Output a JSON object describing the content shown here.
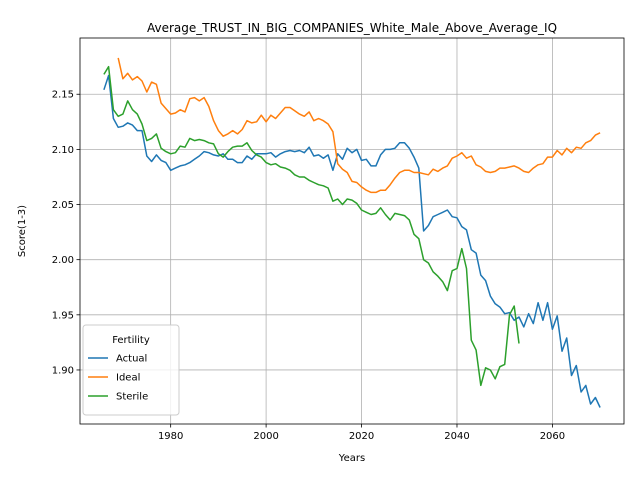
{
  "chart_data": {
    "type": "line",
    "title": "Average_TRUST_IN_BIG_COMPANIES_White_Male_Above_Average_IQ",
    "xlabel": "Years",
    "ylabel": "Score(1-3)",
    "xlim": [
      1961,
      2075
    ],
    "ylim": [
      1.851,
      2.201
    ],
    "xticks": [
      1980,
      2000,
      2020,
      2040,
      2060
    ],
    "yticks": [
      1.9,
      1.95,
      2.0,
      2.05,
      2.1,
      2.15
    ],
    "xtick_labels": [
      "1980",
      "2000",
      "2020",
      "2040",
      "2060"
    ],
    "ytick_labels": [
      "1.90",
      "1.95",
      "2.00",
      "2.05",
      "2.10",
      "2.15"
    ],
    "grid": true,
    "legend": {
      "title": "Fertility",
      "placement": "lower-left"
    },
    "series": [
      {
        "name": "Actual",
        "color": "#1f77b4",
        "points": [
          [
            1966,
            2.154
          ],
          [
            1967,
            2.167
          ],
          [
            1968,
            2.128
          ],
          [
            1969,
            2.12
          ],
          [
            1970,
            2.121
          ],
          [
            1971,
            2.124
          ],
          [
            1972,
            2.122
          ],
          [
            1973,
            2.117
          ],
          [
            1974,
            2.117
          ],
          [
            1975,
            2.094
          ],
          [
            1976,
            2.089
          ],
          [
            1977,
            2.095
          ],
          [
            1978,
            2.09
          ],
          [
            1979,
            2.088
          ],
          [
            1980,
            2.081
          ],
          [
            1981,
            2.083
          ],
          [
            1982,
            2.085
          ],
          [
            1983,
            2.086
          ],
          [
            1984,
            2.088
          ],
          [
            1985,
            2.091
          ],
          [
            1986,
            2.094
          ],
          [
            1987,
            2.098
          ],
          [
            1988,
            2.097
          ],
          [
            1989,
            2.095
          ],
          [
            1990,
            2.094
          ],
          [
            1991,
            2.096
          ],
          [
            1992,
            2.091
          ],
          [
            1993,
            2.091
          ],
          [
            1994,
            2.088
          ],
          [
            1995,
            2.088
          ],
          [
            1996,
            2.094
          ],
          [
            1997,
            2.091
          ],
          [
            1998,
            2.096
          ],
          [
            1999,
            2.096
          ],
          [
            2000,
            2.096
          ],
          [
            2001,
            2.097
          ],
          [
            2002,
            2.093
          ],
          [
            2003,
            2.096
          ],
          [
            2004,
            2.098
          ],
          [
            2005,
            2.099
          ],
          [
            2006,
            2.098
          ],
          [
            2007,
            2.099
          ],
          [
            2008,
            2.097
          ],
          [
            2009,
            2.102
          ],
          [
            2010,
            2.094
          ],
          [
            2011,
            2.095
          ],
          [
            2012,
            2.092
          ],
          [
            2013,
            2.095
          ],
          [
            2014,
            2.081
          ],
          [
            2015,
            2.096
          ],
          [
            2016,
            2.091
          ],
          [
            2017,
            2.101
          ],
          [
            2018,
            2.097
          ],
          [
            2019,
            2.1
          ],
          [
            2020,
            2.09
          ],
          [
            2021,
            2.091
          ],
          [
            2022,
            2.085
          ],
          [
            2023,
            2.085
          ],
          [
            2024,
            2.095
          ],
          [
            2025,
            2.1
          ],
          [
            2026,
            2.1
          ],
          [
            2027,
            2.101
          ],
          [
            2028,
            2.106
          ],
          [
            2029,
            2.106
          ],
          [
            2030,
            2.101
          ],
          [
            2031,
            2.093
          ],
          [
            2032,
            2.083
          ],
          [
            2033,
            2.026
          ],
          [
            2034,
            2.031
          ],
          [
            2035,
            2.039
          ],
          [
            2036,
            2.041
          ],
          [
            2037,
            2.043
          ],
          [
            2038,
            2.045
          ],
          [
            2039,
            2.039
          ],
          [
            2040,
            2.038
          ],
          [
            2041,
            2.03
          ],
          [
            2042,
            2.027
          ],
          [
            2043,
            2.009
          ],
          [
            2044,
            2.006
          ],
          [
            2045,
            1.986
          ],
          [
            2046,
            1.981
          ],
          [
            2047,
            1.967
          ],
          [
            2048,
            1.96
          ],
          [
            2049,
            1.957
          ],
          [
            2050,
            1.951
          ],
          [
            2051,
            1.952
          ],
          [
            2052,
            1.945
          ],
          [
            2053,
            1.948
          ],
          [
            2054,
            1.939
          ],
          [
            2055,
            1.951
          ],
          [
            2056,
            1.942
          ],
          [
            2057,
            1.961
          ],
          [
            2058,
            1.945
          ],
          [
            2059,
            1.961
          ],
          [
            2060,
            1.937
          ],
          [
            2061,
            1.949
          ],
          [
            2062,
            1.917
          ],
          [
            2063,
            1.929
          ],
          [
            2064,
            1.895
          ],
          [
            2065,
            1.904
          ],
          [
            2066,
            1.88
          ],
          [
            2067,
            1.886
          ],
          [
            2068,
            1.869
          ],
          [
            2069,
            1.875
          ],
          [
            2070,
            1.866
          ]
        ]
      },
      {
        "name": "Ideal",
        "color": "#ff7f0e",
        "points": [
          [
            1969,
            2.183
          ],
          [
            1970,
            2.164
          ],
          [
            1971,
            2.169
          ],
          [
            1972,
            2.163
          ],
          [
            1973,
            2.166
          ],
          [
            1974,
            2.162
          ],
          [
            1975,
            2.152
          ],
          [
            1976,
            2.161
          ],
          [
            1977,
            2.159
          ],
          [
            1978,
            2.142
          ],
          [
            1979,
            2.137
          ],
          [
            1980,
            2.132
          ],
          [
            1981,
            2.133
          ],
          [
            1982,
            2.136
          ],
          [
            1983,
            2.134
          ],
          [
            1984,
            2.146
          ],
          [
            1985,
            2.147
          ],
          [
            1986,
            2.144
          ],
          [
            1987,
            2.147
          ],
          [
            1988,
            2.139
          ],
          [
            1989,
            2.126
          ],
          [
            1990,
            2.117
          ],
          [
            1991,
            2.112
          ],
          [
            1992,
            2.114
          ],
          [
            1993,
            2.117
          ],
          [
            1994,
            2.114
          ],
          [
            1995,
            2.118
          ],
          [
            1996,
            2.126
          ],
          [
            1997,
            2.124
          ],
          [
            1998,
            2.125
          ],
          [
            1999,
            2.131
          ],
          [
            2000,
            2.125
          ],
          [
            2001,
            2.131
          ],
          [
            2002,
            2.128
          ],
          [
            2003,
            2.133
          ],
          [
            2004,
            2.138
          ],
          [
            2005,
            2.138
          ],
          [
            2006,
            2.135
          ],
          [
            2007,
            2.132
          ],
          [
            2008,
            2.13
          ],
          [
            2009,
            2.134
          ],
          [
            2010,
            2.126
          ],
          [
            2011,
            2.128
          ],
          [
            2012,
            2.126
          ],
          [
            2013,
            2.123
          ],
          [
            2014,
            2.116
          ],
          [
            2015,
            2.087
          ],
          [
            2016,
            2.082
          ],
          [
            2017,
            2.079
          ],
          [
            2018,
            2.071
          ],
          [
            2019,
            2.07
          ],
          [
            2020,
            2.066
          ],
          [
            2021,
            2.063
          ],
          [
            2022,
            2.061
          ],
          [
            2023,
            2.061
          ],
          [
            2024,
            2.063
          ],
          [
            2025,
            2.063
          ],
          [
            2026,
            2.068
          ],
          [
            2027,
            2.074
          ],
          [
            2028,
            2.079
          ],
          [
            2029,
            2.081
          ],
          [
            2030,
            2.081
          ],
          [
            2031,
            2.079
          ],
          [
            2032,
            2.079
          ],
          [
            2033,
            2.078
          ],
          [
            2034,
            2.077
          ],
          [
            2035,
            2.082
          ],
          [
            2036,
            2.08
          ],
          [
            2037,
            2.083
          ],
          [
            2038,
            2.085
          ],
          [
            2039,
            2.092
          ],
          [
            2040,
            2.094
          ],
          [
            2041,
            2.097
          ],
          [
            2042,
            2.092
          ],
          [
            2043,
            2.094
          ],
          [
            2044,
            2.086
          ],
          [
            2045,
            2.084
          ],
          [
            2046,
            2.08
          ],
          [
            2047,
            2.079
          ],
          [
            2048,
            2.08
          ],
          [
            2049,
            2.083
          ],
          [
            2050,
            2.083
          ],
          [
            2051,
            2.084
          ],
          [
            2052,
            2.085
          ],
          [
            2053,
            2.083
          ],
          [
            2054,
            2.08
          ],
          [
            2055,
            2.079
          ],
          [
            2056,
            2.083
          ],
          [
            2057,
            2.086
          ],
          [
            2058,
            2.087
          ],
          [
            2059,
            2.093
          ],
          [
            2060,
            2.093
          ],
          [
            2061,
            2.099
          ],
          [
            2062,
            2.095
          ],
          [
            2063,
            2.101
          ],
          [
            2064,
            2.097
          ],
          [
            2065,
            2.102
          ],
          [
            2066,
            2.101
          ],
          [
            2067,
            2.106
          ],
          [
            2068,
            2.108
          ],
          [
            2069,
            2.113
          ],
          [
            2070,
            2.115
          ]
        ]
      },
      {
        "name": "Sterile",
        "color": "#2ca02c",
        "points": [
          [
            1966,
            2.168
          ],
          [
            1967,
            2.175
          ],
          [
            1968,
            2.136
          ],
          [
            1969,
            2.13
          ],
          [
            1970,
            2.132
          ],
          [
            1971,
            2.144
          ],
          [
            1972,
            2.136
          ],
          [
            1973,
            2.132
          ],
          [
            1974,
            2.123
          ],
          [
            1975,
            2.108
          ],
          [
            1976,
            2.11
          ],
          [
            1977,
            2.114
          ],
          [
            1978,
            2.101
          ],
          [
            1979,
            2.098
          ],
          [
            1980,
            2.096
          ],
          [
            1981,
            2.097
          ],
          [
            1982,
            2.103
          ],
          [
            1983,
            2.102
          ],
          [
            1984,
            2.11
          ],
          [
            1985,
            2.108
          ],
          [
            1986,
            2.109
          ],
          [
            1987,
            2.108
          ],
          [
            1988,
            2.106
          ],
          [
            1989,
            2.105
          ],
          [
            1990,
            2.096
          ],
          [
            1991,
            2.093
          ],
          [
            1992,
            2.098
          ],
          [
            1993,
            2.102
          ],
          [
            1994,
            2.103
          ],
          [
            1995,
            2.103
          ],
          [
            1996,
            2.106
          ],
          [
            1997,
            2.099
          ],
          [
            1998,
            2.095
          ],
          [
            1999,
            2.093
          ],
          [
            2000,
            2.088
          ],
          [
            2001,
            2.086
          ],
          [
            2002,
            2.087
          ],
          [
            2003,
            2.084
          ],
          [
            2004,
            2.083
          ],
          [
            2005,
            2.081
          ],
          [
            2006,
            2.077
          ],
          [
            2007,
            2.075
          ],
          [
            2008,
            2.075
          ],
          [
            2009,
            2.072
          ],
          [
            2010,
            2.07
          ],
          [
            2011,
            2.068
          ],
          [
            2012,
            2.067
          ],
          [
            2013,
            2.065
          ],
          [
            2014,
            2.053
          ],
          [
            2015,
            2.055
          ],
          [
            2016,
            2.05
          ],
          [
            2017,
            2.055
          ],
          [
            2018,
            2.054
          ],
          [
            2019,
            2.051
          ],
          [
            2020,
            2.045
          ],
          [
            2021,
            2.043
          ],
          [
            2022,
            2.041
          ],
          [
            2023,
            2.042
          ],
          [
            2024,
            2.047
          ],
          [
            2025,
            2.041
          ],
          [
            2026,
            2.036
          ],
          [
            2027,
            2.042
          ],
          [
            2028,
            2.041
          ],
          [
            2029,
            2.04
          ],
          [
            2030,
            2.036
          ],
          [
            2031,
            2.023
          ],
          [
            2032,
            2.019
          ],
          [
            2033,
            2.0
          ],
          [
            2034,
            1.997
          ],
          [
            2035,
            1.989
          ],
          [
            2036,
            1.985
          ],
          [
            2037,
            1.98
          ],
          [
            2038,
            1.972
          ],
          [
            2039,
            1.99
          ],
          [
            2040,
            1.992
          ],
          [
            2041,
            2.01
          ],
          [
            2042,
            1.992
          ],
          [
            2043,
            1.927
          ],
          [
            2044,
            1.918
          ],
          [
            2045,
            1.886
          ],
          [
            2046,
            1.902
          ],
          [
            2047,
            1.9
          ],
          [
            2048,
            1.892
          ],
          [
            2049,
            1.903
          ],
          [
            2050,
            1.905
          ],
          [
            2051,
            1.95
          ],
          [
            2052,
            1.958
          ],
          [
            2053,
            1.924
          ]
        ]
      }
    ]
  }
}
